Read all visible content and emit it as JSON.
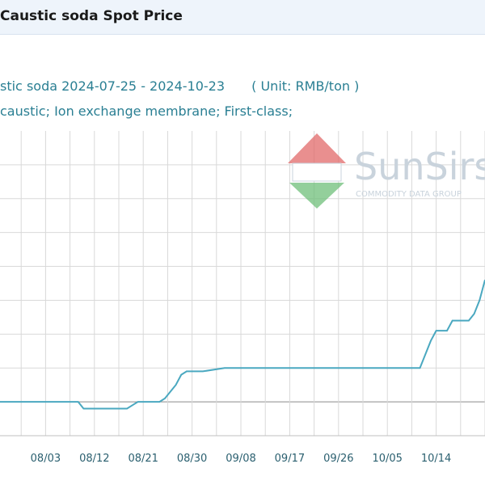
{
  "header": {
    "title": "Caustic soda Spot Price"
  },
  "subtitle": {
    "line1_name": "stic soda",
    "line1_range": "2024-07-25 - 2024-10-23",
    "line1_unit": "( Unit: RMB/ton )",
    "line2": "caustic; Ion exchange membrane; First-class;"
  },
  "watermark": {
    "brand": "SunSirs",
    "tagline": "COMMODITY DATA GROUP",
    "colors": {
      "roof": "#e26a6a",
      "base": "#6fbf7a",
      "text": "#c9d3dc"
    }
  },
  "chart_data": {
    "type": "line",
    "x_axis": {
      "tick_labels": [
        "08/03",
        "08/12",
        "08/21",
        "08/30",
        "09/08",
        "09/17",
        "09/26",
        "10/05",
        "10/14"
      ],
      "tick_days": [
        9,
        18,
        27,
        36,
        45,
        54,
        63,
        72,
        81
      ],
      "range_days": [
        0,
        90
      ]
    },
    "y_axis": {
      "range": [
        0,
        9
      ],
      "tick_labels": []
    },
    "grid": true,
    "line_color": "#4aa8c0",
    "series": [
      {
        "x": [
          0,
          1,
          6,
          15,
          16,
          17,
          24,
          25,
          26,
          30,
          31,
          33,
          34,
          35,
          38,
          42,
          43,
          78,
          80,
          81,
          83,
          84,
          86,
          87,
          88,
          89,
          90
        ],
        "y": [
          1.0,
          1.0,
          1.0,
          1.0,
          0.8,
          0.8,
          0.8,
          0.9,
          1.0,
          1.0,
          1.1,
          1.5,
          1.8,
          1.9,
          1.9,
          2.0,
          2.0,
          2.0,
          2.8,
          3.1,
          3.1,
          3.4,
          3.4,
          3.4,
          3.6,
          4.0,
          4.6
        ]
      }
    ]
  }
}
